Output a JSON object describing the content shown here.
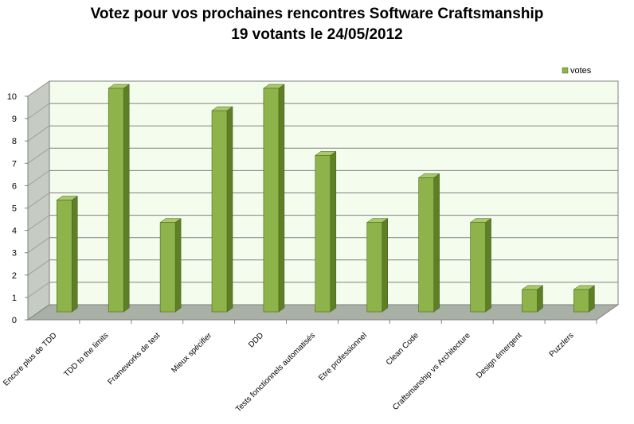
{
  "chart_data": {
    "type": "bar",
    "title": "Votez pour vos prochaines rencontres Software Craftsmanship",
    "subtitle": "19 votants le 24/05/2012",
    "categories": [
      "Encore plus de TDD",
      "TDD to the limits",
      "Frameworks de test",
      "Mieux spécifier",
      "DDD",
      "Tests fonctionnels automatisés",
      "Etre professionnel",
      "Clean Code",
      "Craftsmanship vs Architecture",
      "Design émergent",
      "Puzzlers"
    ],
    "series": [
      {
        "name": "votes",
        "values": [
          5,
          10,
          4,
          9,
          10,
          7,
          4,
          6,
          4,
          1,
          1
        ],
        "color": "#8db34a"
      }
    ],
    "ylim": [
      0,
      10
    ],
    "yticks": [
      0,
      1,
      2,
      3,
      4,
      5,
      6,
      7,
      8,
      9,
      10
    ],
    "grid": true,
    "legend": "top-right",
    "style": "3d-column"
  }
}
